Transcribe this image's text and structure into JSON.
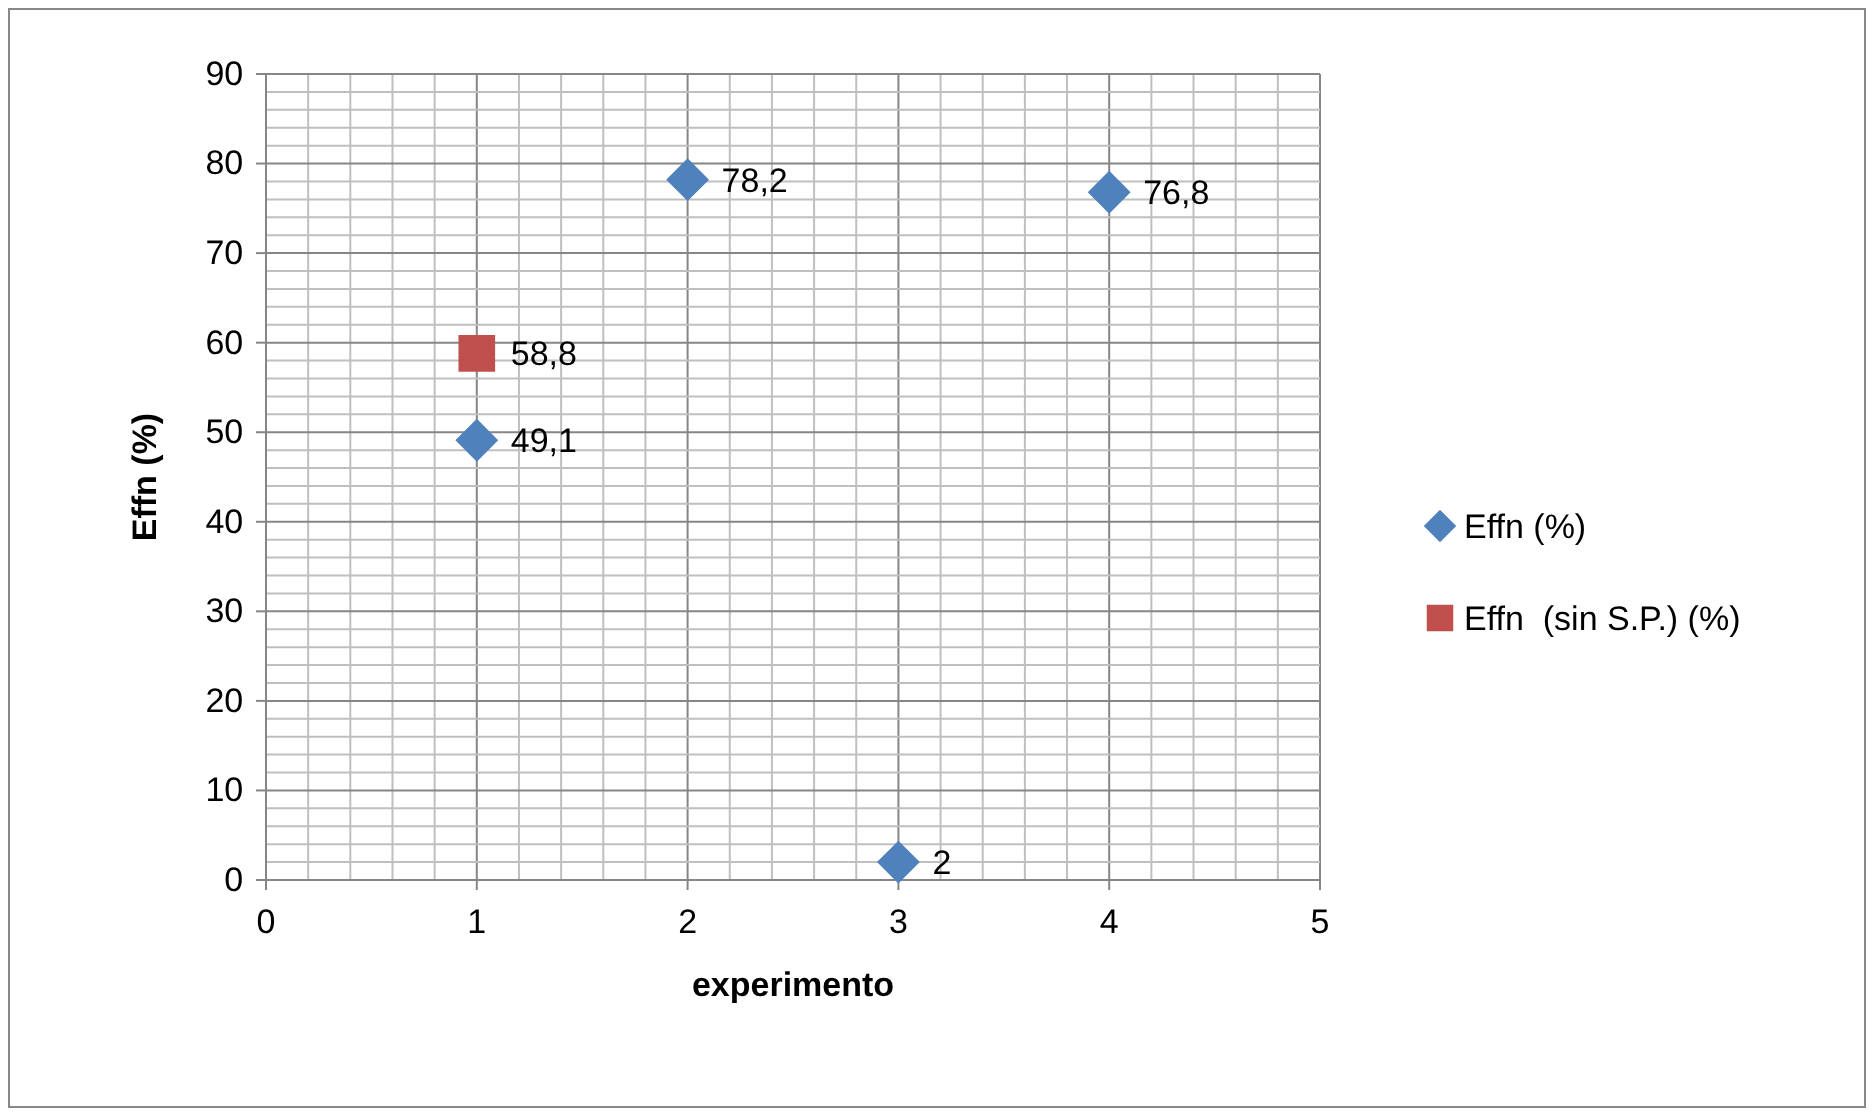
{
  "chart_data": {
    "type": "scatter",
    "xlabel": "experimento",
    "ylabel": "Effn (%)",
    "xlim": [
      0,
      5
    ],
    "ylim": [
      0,
      90
    ],
    "xticks": [
      0,
      {
        "value": 0.2,
        "label": null
      },
      {
        "value": 0.4,
        "label": null
      },
      {
        "value": 0.6,
        "label": null
      },
      {
        "value": 0.8,
        "label": null
      },
      1,
      {
        "value": 1.2,
        "label": null
      },
      {
        "value": 1.4,
        "label": null
      },
      {
        "value": 1.6,
        "label": null
      },
      {
        "value": 1.8,
        "label": null
      },
      2,
      {
        "value": 2.2,
        "label": null
      },
      {
        "value": 2.4,
        "label": null
      },
      {
        "value": 2.6,
        "label": null
      },
      {
        "value": 2.8,
        "label": null
      },
      3,
      {
        "value": 3.2,
        "label": null
      },
      {
        "value": 3.4,
        "label": null
      },
      {
        "value": 3.6,
        "label": null
      },
      {
        "value": 3.8,
        "label": null
      },
      4,
      {
        "value": 4.2,
        "label": null
      },
      {
        "value": 4.4,
        "label": null
      },
      {
        "value": 4.6,
        "label": null
      },
      {
        "value": 4.8,
        "label": null
      },
      5
    ],
    "yticks": [
      0,
      {
        "value": 2,
        "label": null
      },
      {
        "value": 4,
        "label": null
      },
      {
        "value": 6,
        "label": null
      },
      {
        "value": 8,
        "label": null
      },
      10,
      {
        "value": 12,
        "label": null
      },
      {
        "value": 14,
        "label": null
      },
      {
        "value": 16,
        "label": null
      },
      {
        "value": 18,
        "label": null
      },
      20,
      {
        "value": 22,
        "label": null
      },
      {
        "value": 24,
        "label": null
      },
      {
        "value": 26,
        "label": null
      },
      {
        "value": 28,
        "label": null
      },
      30,
      {
        "value": 32,
        "label": null
      },
      {
        "value": 34,
        "label": null
      },
      {
        "value": 36,
        "label": null
      },
      {
        "value": 38,
        "label": null
      },
      40,
      {
        "value": 42,
        "label": null
      },
      {
        "value": 44,
        "label": null
      },
      {
        "value": 46,
        "label": null
      },
      {
        "value": 48,
        "label": null
      },
      50,
      {
        "value": 52,
        "label": null
      },
      {
        "value": 54,
        "label": null
      },
      {
        "value": 56,
        "label": null
      },
      {
        "value": 58,
        "label": null
      },
      60,
      {
        "value": 62,
        "label": null
      },
      {
        "value": 64,
        "label": null
      },
      {
        "value": 66,
        "label": null
      },
      {
        "value": 68,
        "label": null
      },
      70,
      {
        "value": 72,
        "label": null
      },
      {
        "value": 74,
        "label": null
      },
      {
        "value": 76,
        "label": null
      },
      {
        "value": 78,
        "label": null
      },
      80,
      {
        "value": 82,
        "label": null
      },
      {
        "value": 84,
        "label": null
      },
      {
        "value": 86,
        "label": null
      },
      {
        "value": 88,
        "label": null
      },
      90
    ],
    "grid": true,
    "legend": "right",
    "series": [
      {
        "name": "Effn (%)",
        "color": "#4f81bd",
        "marker": "diamond",
        "x": [
          1,
          2,
          3,
          4
        ],
        "values": [
          49.1,
          78.2,
          2,
          76.8
        ],
        "value_labels": [
          "49,1",
          "78,2",
          "2",
          "76,8"
        ]
      },
      {
        "name": "Effn  (sin S.P.) (%)",
        "color": "#c0504d",
        "marker": "square",
        "x": [
          1
        ],
        "values": [
          58.8
        ],
        "value_labels": [
          "58,8"
        ]
      }
    ]
  }
}
